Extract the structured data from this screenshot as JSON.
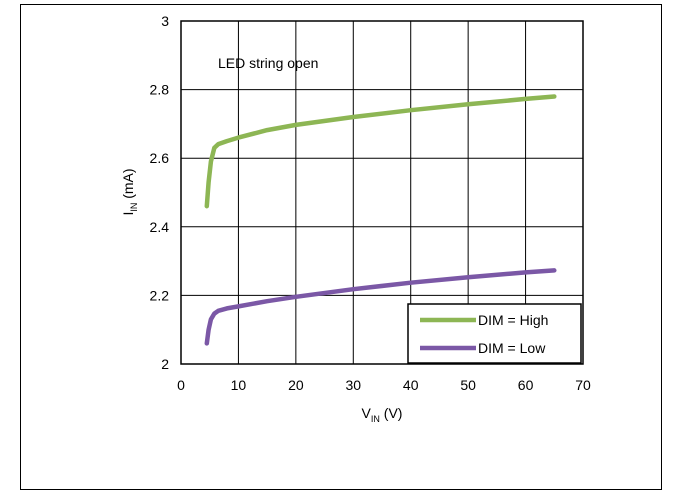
{
  "chart_data": {
    "type": "line",
    "annotation": "LED string open",
    "xlabel": {
      "main": "V",
      "sub": "IN",
      "unit": " (V)"
    },
    "ylabel": {
      "main": "I",
      "sub": "IN",
      "unit": " (mA)"
    },
    "xlim": [
      0,
      70
    ],
    "ylim": [
      2,
      3
    ],
    "xticks": [
      "0",
      "10",
      "20",
      "30",
      "40",
      "50",
      "60",
      "70"
    ],
    "yticks": [
      "2",
      "2.2",
      "2.4",
      "2.6",
      "2.8",
      "3"
    ],
    "grid": true,
    "legend_position": "bottom-right",
    "series": [
      {
        "name": "DIM = High",
        "color": "#8DB654",
        "x": [
          4.5,
          4.8,
          5.2,
          5.8,
          6.5,
          8,
          10,
          15,
          20,
          30,
          40,
          50,
          60,
          65
        ],
        "y": [
          2.46,
          2.53,
          2.59,
          2.63,
          2.641,
          2.65,
          2.66,
          2.682,
          2.697,
          2.72,
          2.74,
          2.757,
          2.773,
          2.78
        ]
      },
      {
        "name": "DIM = Low",
        "color": "#7B58A6",
        "x": [
          4.5,
          4.8,
          5.2,
          5.8,
          6.5,
          8,
          10,
          15,
          20,
          30,
          40,
          50,
          60,
          65
        ],
        "y": [
          2.06,
          2.1,
          2.13,
          2.147,
          2.155,
          2.162,
          2.168,
          2.183,
          2.196,
          2.218,
          2.237,
          2.253,
          2.267,
          2.273
        ]
      }
    ]
  }
}
